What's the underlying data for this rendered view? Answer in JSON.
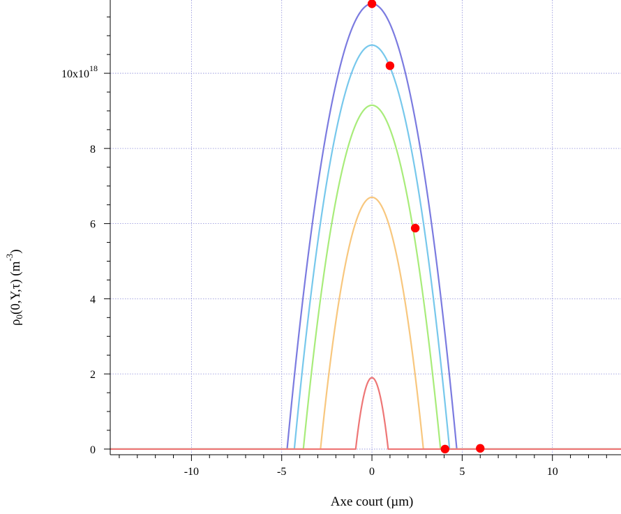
{
  "chart_data": {
    "type": "line",
    "xlabel": "Axe court (µm)",
    "ylabel": {
      "main": "ρ",
      "sub": "0",
      "args": "(0,Y,τ)  (m",
      "exp": "-3",
      "close": ")"
    },
    "y_exponent_label": {
      "prefix": "10x10",
      "exp": "18"
    },
    "xlim": [
      -14.5,
      13.8
    ],
    "ylim": [
      -0.15,
      11.95
    ],
    "x_ticks": [
      -10,
      -5,
      0,
      5,
      10
    ],
    "y_ticks": [
      0,
      2,
      4,
      6,
      8,
      10
    ],
    "grid": true,
    "series": [
      {
        "color": "#7b7be0",
        "peak": 11.85,
        "half_width": 4.7
      },
      {
        "color": "#77c8ec",
        "peak": 10.75,
        "half_width": 4.3
      },
      {
        "color": "#a8ec7a",
        "peak": 9.15,
        "half_width": 3.8
      },
      {
        "color": "#f8c77e",
        "peak": 6.7,
        "half_width": 2.85
      },
      {
        "color": "#ee7676",
        "peak": 1.9,
        "half_width": 0.9
      }
    ],
    "markers": {
      "color": "#ff0000",
      "points": [
        {
          "x": 0.0,
          "y": 11.85
        },
        {
          "x": 1.0,
          "y": 10.2
        },
        {
          "x": 2.4,
          "y": 5.88
        },
        {
          "x": 4.05,
          "y": 0.0
        },
        {
          "x": 6.0,
          "y": 0.02
        }
      ]
    }
  }
}
